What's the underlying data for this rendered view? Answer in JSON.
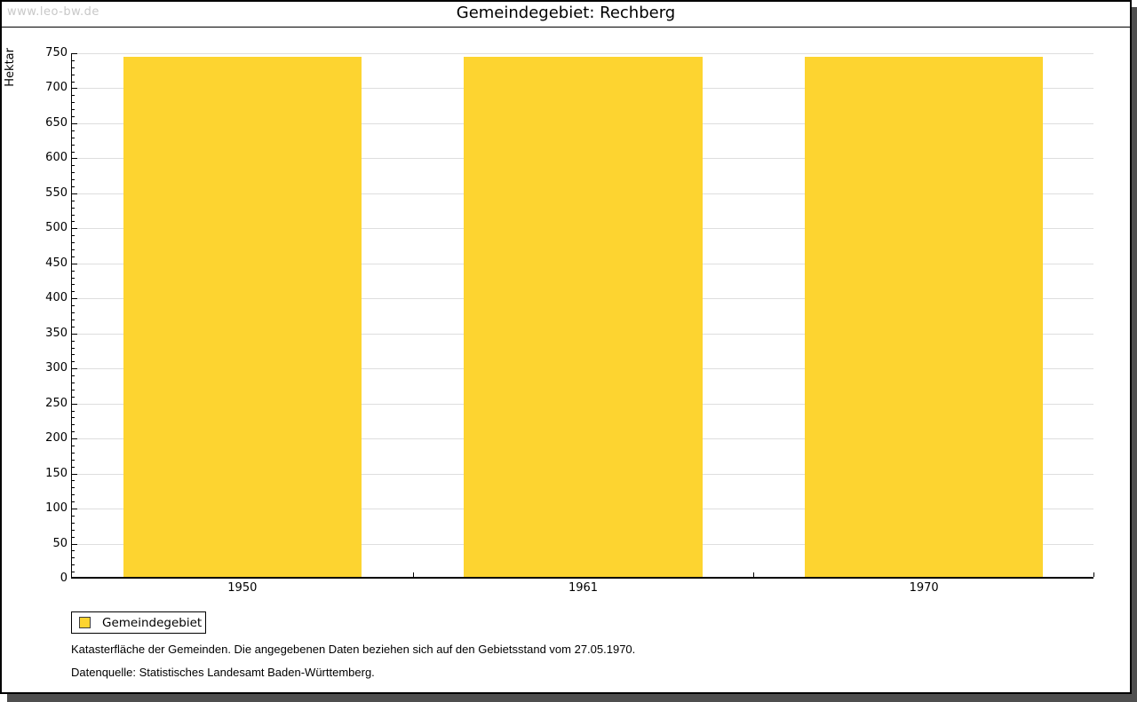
{
  "watermark": "www.leo-bw.de",
  "header": {
    "title": "Gemeindegebiet: Rechberg"
  },
  "chart_data": {
    "type": "bar",
    "title": "Gemeindegebiet: Rechberg",
    "categories": [
      "1950",
      "1961",
      "1970"
    ],
    "series": [
      {
        "name": "Gemeindegebiet",
        "values": [
          743,
          743,
          743
        ],
        "color": "#FDD430"
      }
    ],
    "xlabel": "",
    "ylabel": "Hektar",
    "ylim": [
      0,
      750
    ],
    "ytick_major": 50,
    "ytick_minor": 10,
    "grid": "horizontal-major-only",
    "legend_position": "bottom-left",
    "bar_width_fraction": 0.7
  },
  "legend": {
    "items": [
      {
        "label": "Gemeindegebiet",
        "color": "#FDD430"
      }
    ]
  },
  "footnotes": {
    "line1": "Katasterfläche der Gemeinden. Die angegebenen Daten beziehen sich auf den Gebietsstand vom 27.05.1970.",
    "line2": "Datenquelle: Statistisches Landesamt Baden-Württemberg."
  },
  "colors": {
    "bar": "#FDD430",
    "grid": "#DEDEDE",
    "watermark": "#C8C8C8",
    "frame_shadow": "#4F4F4F",
    "axis": "#000000"
  }
}
